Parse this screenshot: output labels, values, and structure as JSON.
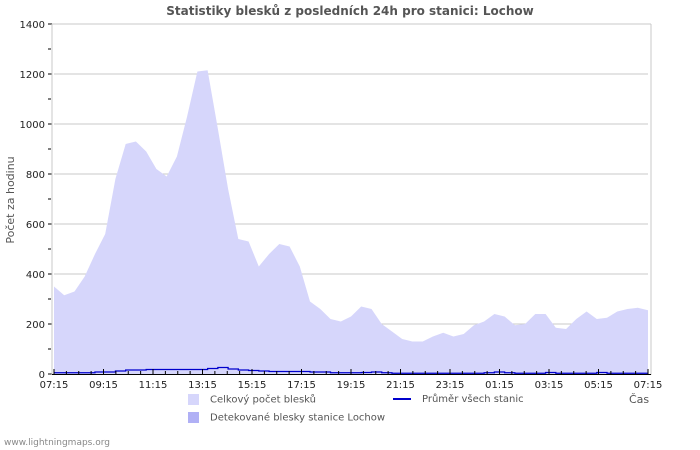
{
  "title": "Statistiky blesků z posledních 24h pro stanici: Lochow",
  "footer": "www.lightningmaps.org",
  "colors": {
    "total_fill": "#d6d6fb",
    "station_fill": "#b0b0f5",
    "avg_line": "#0000cc",
    "grid": "#c8c8c8",
    "frame": "#c8c8c8"
  },
  "legend": {
    "total": "Celkový počet blesků",
    "station": "Detekované blesky stanice Lochow",
    "average": "Průměr všech stanic"
  },
  "chart_data": {
    "type": "area",
    "title": "Statistiky blesků z posledních 24h pro stanici: Lochow",
    "xlabel": "Čas",
    "ylabel": "Počet za hodinu",
    "ylim": [
      0,
      1400
    ],
    "yticks": [
      0,
      200,
      400,
      600,
      800,
      1000,
      1200,
      1400
    ],
    "xticks": [
      "07:15",
      "09:15",
      "11:15",
      "13:15",
      "15:15",
      "17:15",
      "19:15",
      "21:15",
      "23:15",
      "01:15",
      "03:15",
      "05:15",
      "07:15"
    ],
    "grid": true,
    "legend_position": "bottom",
    "x_interval_minutes": 30,
    "series": [
      {
        "name": "Celkový počet blesků",
        "kind": "area",
        "values": [
          350,
          315,
          330,
          390,
          480,
          560,
          780,
          920,
          930,
          890,
          820,
          790,
          870,
          1030,
          1210,
          1215,
          980,
          740,
          540,
          530,
          430,
          480,
          520,
          510,
          430,
          290,
          260,
          220,
          210,
          230,
          270,
          260,
          200,
          170,
          140,
          130,
          130,
          150,
          165,
          150,
          160,
          195,
          210,
          240,
          230,
          195,
          200,
          240,
          240,
          185,
          180,
          220,
          250,
          220,
          225,
          250,
          260,
          265,
          255
        ]
      },
      {
        "name": "Detekované blesky stanice Lochow",
        "kind": "area",
        "values": [
          0,
          0,
          0,
          0,
          0,
          0,
          0,
          0,
          0,
          0,
          0,
          0,
          0,
          0,
          0,
          0,
          0,
          0,
          0,
          0,
          0,
          0,
          0,
          0,
          0,
          0,
          0,
          0,
          0,
          0,
          0,
          0,
          0,
          0,
          0,
          0,
          0,
          0,
          0,
          0,
          0,
          0,
          0,
          0,
          0,
          0,
          0,
          0,
          0,
          0,
          0,
          0,
          0,
          0,
          0,
          0,
          0,
          0,
          0
        ]
      },
      {
        "name": "Průměr všech stanic",
        "kind": "step-line",
        "values": [
          5,
          5,
          5,
          5,
          8,
          8,
          12,
          16,
          16,
          18,
          18,
          18,
          18,
          18,
          18,
          22,
          26,
          20,
          16,
          14,
          12,
          10,
          10,
          10,
          10,
          8,
          8,
          5,
          5,
          5,
          6,
          8,
          5,
          3,
          3,
          3,
          3,
          3,
          3,
          3,
          3,
          3,
          5,
          8,
          5,
          3,
          3,
          3,
          6,
          3,
          3,
          3,
          3,
          6,
          3,
          3,
          3,
          3,
          3
        ]
      }
    ]
  }
}
